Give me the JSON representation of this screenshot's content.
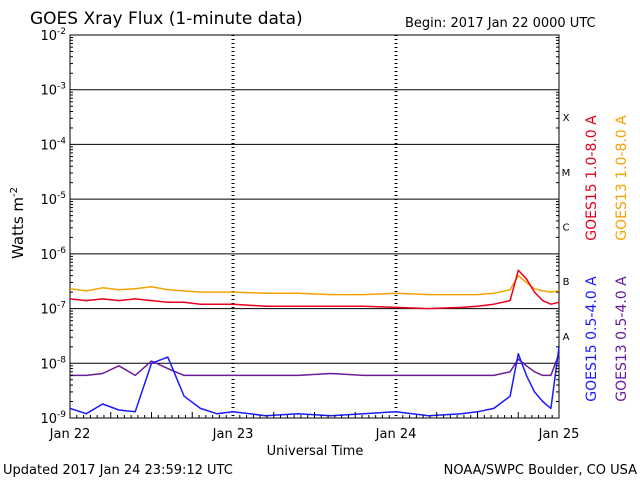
{
  "chart_data": {
    "type": "line",
    "title": "GOES Xray Flux (1-minute data)",
    "begin_text": "Begin:  2017 Jan 22 0000 UTC",
    "xlabel": "Universal Time",
    "ylabel_base": "Watts m",
    "ylabel_exp": "-2",
    "footer_left": "Updated 2017 Jan 24 23:59:12 UTC",
    "footer_right": "NOAA/SWPC Boulder, CO USA",
    "x_ticks": [
      "Jan 22",
      "Jan 23",
      "Jan 24",
      "Jan 25"
    ],
    "x_range_days": [
      0,
      3
    ],
    "y_scale": "log",
    "ylim": [
      1e-09,
      0.01
    ],
    "y_ticks": [
      {
        "base": "10",
        "exp": "-9",
        "value": 1e-09
      },
      {
        "base": "10",
        "exp": "-8",
        "value": 1e-08
      },
      {
        "base": "10",
        "exp": "-7",
        "value": 1e-07
      },
      {
        "base": "10",
        "exp": "-6",
        "value": 1e-06
      },
      {
        "base": "10",
        "exp": "-5",
        "value": 1e-05
      },
      {
        "base": "10",
        "exp": "-4",
        "value": 0.0001
      },
      {
        "base": "10",
        "exp": "-3",
        "value": 0.001
      },
      {
        "base": "10",
        "exp": "-2",
        "value": 0.01
      }
    ],
    "flare_classes": [
      {
        "label": "A",
        "value": 1e-08
      },
      {
        "label": "B",
        "value": 1e-07
      },
      {
        "label": "C",
        "value": 1e-06
      },
      {
        "label": "M",
        "value": 1e-05
      },
      {
        "label": "X",
        "value": 0.0001
      }
    ],
    "series": [
      {
        "name": "GOES13 1.0-8.0 A",
        "color": "#f5a300",
        "x": [
          0,
          0.1,
          0.2,
          0.3,
          0.4,
          0.5,
          0.6,
          0.7,
          0.8,
          0.9,
          1.0,
          1.2,
          1.4,
          1.6,
          1.8,
          2.0,
          2.2,
          2.4,
          2.5,
          2.6,
          2.7,
          2.75,
          2.8,
          2.85,
          2.9,
          2.95,
          3.0
        ],
        "y": [
          2.3e-07,
          2.1e-07,
          2.4e-07,
          2.2e-07,
          2.3e-07,
          2.5e-07,
          2.2e-07,
          2.1e-07,
          2e-07,
          2e-07,
          2e-07,
          1.9e-07,
          1.9e-07,
          1.8e-07,
          1.8e-07,
          1.9e-07,
          1.8e-07,
          1.8e-07,
          1.8e-07,
          1.9e-07,
          2.2e-07,
          4e-07,
          3e-07,
          2.3e-07,
          2.1e-07,
          2e-07,
          2.1e-07
        ]
      },
      {
        "name": "GOES15 1.0-8.0 A",
        "color": "#e8001c",
        "x": [
          0,
          0.1,
          0.2,
          0.3,
          0.4,
          0.5,
          0.6,
          0.7,
          0.8,
          0.9,
          1.0,
          1.2,
          1.4,
          1.6,
          1.8,
          2.0,
          2.2,
          2.4,
          2.5,
          2.6,
          2.7,
          2.75,
          2.8,
          2.85,
          2.9,
          2.95,
          3.0
        ],
        "y": [
          1.5e-07,
          1.4e-07,
          1.5e-07,
          1.4e-07,
          1.5e-07,
          1.4e-07,
          1.3e-07,
          1.3e-07,
          1.2e-07,
          1.2e-07,
          1.2e-07,
          1.1e-07,
          1.1e-07,
          1.1e-07,
          1.1e-07,
          1.05e-07,
          1e-07,
          1.05e-07,
          1.1e-07,
          1.2e-07,
          1.4e-07,
          5e-07,
          3.5e-07,
          2e-07,
          1.4e-07,
          1.2e-07,
          1.3e-07
        ]
      },
      {
        "name": "GOES13 0.5-4.0 A",
        "color": "#6a1b9a",
        "x": [
          0,
          0.1,
          0.2,
          0.3,
          0.4,
          0.5,
          0.6,
          0.7,
          0.8,
          0.9,
          1.0,
          1.2,
          1.4,
          1.6,
          1.8,
          2.0,
          2.2,
          2.4,
          2.5,
          2.6,
          2.7,
          2.75,
          2.8,
          2.85,
          2.9,
          2.95,
          3.0
        ],
        "y": [
          6e-09,
          6e-09,
          6.5e-09,
          9e-09,
          6e-09,
          1.1e-08,
          8e-09,
          6e-09,
          6e-09,
          6e-09,
          6e-09,
          6e-09,
          6e-09,
          6.5e-09,
          6e-09,
          6e-09,
          6e-09,
          6e-09,
          6e-09,
          6e-09,
          7e-09,
          1.2e-08,
          9e-09,
          7e-09,
          6e-09,
          6e-09,
          1.5e-08
        ]
      },
      {
        "name": "GOES15 0.5-4.0 A",
        "color": "#1a1aff",
        "x": [
          0,
          0.1,
          0.2,
          0.3,
          0.4,
          0.5,
          0.6,
          0.7,
          0.8,
          0.9,
          1.0,
          1.2,
          1.4,
          1.6,
          1.8,
          2.0,
          2.2,
          2.4,
          2.5,
          2.6,
          2.7,
          2.75,
          2.8,
          2.85,
          2.9,
          2.95,
          3.0
        ],
        "y": [
          1.5e-09,
          1.2e-09,
          1.8e-09,
          1.4e-09,
          1.3e-09,
          1e-08,
          1.3e-08,
          2.5e-09,
          1.5e-09,
          1.2e-09,
          1.3e-09,
          1.1e-09,
          1.2e-09,
          1.1e-09,
          1.2e-09,
          1.3e-09,
          1.1e-09,
          1.2e-09,
          1.3e-09,
          1.5e-09,
          2.5e-09,
          1.5e-08,
          6e-09,
          3e-09,
          2e-09,
          1.5e-09,
          2e-08
        ]
      }
    ]
  }
}
